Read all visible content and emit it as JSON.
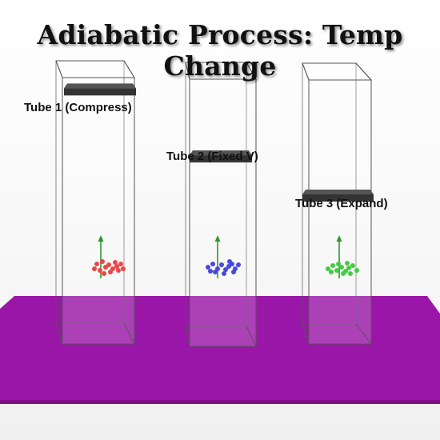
{
  "title": "Adiabatic Process: Temp Change",
  "colors": {
    "platform": "#9a16a8",
    "piston": "#333333",
    "axis_arrow": "#2a9a2a",
    "tube_outline": "#555555"
  },
  "tubes": [
    {
      "label": "Tube 1 (Compress)",
      "particle_color": "#e84848",
      "piston_level": 0.92
    },
    {
      "label": "Tube 2 (Fixed V)",
      "particle_color": "#4848e0",
      "piston_level": 0.69
    },
    {
      "label": "Tube 3 (Expand)",
      "particle_color": "#44cc44",
      "piston_level": 0.55
    }
  ]
}
